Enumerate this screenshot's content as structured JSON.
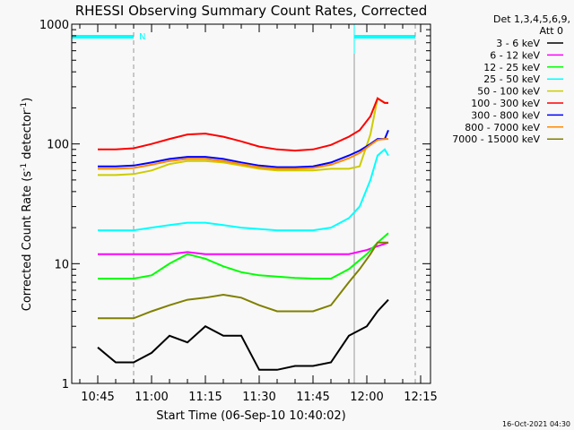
{
  "chart_data": {
    "type": "line",
    "title": "RHESSI Observing Summary Count Rates, Corrected",
    "xlabel": "Start Time (06-Sep-10 10:40:02)",
    "ylabel": "Corrected Count Rate (s",
    "ylabel_sup1": "-1",
    "ylabel_mid": " detector",
    "ylabel_sup2": "-1",
    "ylabel_end": ")",
    "y_scale": "log",
    "ylim": [
      1,
      1000
    ],
    "xlim": [
      "10:37:45",
      "12:17:45"
    ],
    "x_ticks": [
      "10:45",
      "11:00",
      "11:15",
      "11:30",
      "11:45",
      "12:00",
      "12:15"
    ],
    "y_ticks": [
      "1",
      "10",
      "100",
      "1000"
    ],
    "grid": false,
    "legend_placement": "right-outside",
    "legend_header": [
      "Det 1,3,4,5,6,9,",
      "Att 0"
    ],
    "footer_date": "16-Oct-2021 04:30",
    "annotations": {
      "night_label": "N",
      "night_color": "#00ffff",
      "night_intervals": [
        [
          "10:37:45",
          "10:55:00"
        ],
        [
          "11:56:30",
          "12:13:30"
        ]
      ],
      "solid_markers": [
        "10:37:45",
        "11:56:30"
      ],
      "dashed_markers": [
        "10:55:00",
        "12:13:30"
      ]
    },
    "series": [
      {
        "name": "3 - 6 keV",
        "color": "#000000",
        "x": [
          "10:45",
          "10:50",
          "10:55",
          "11:00",
          "11:05",
          "11:10",
          "11:15",
          "11:20",
          "11:25",
          "11:30",
          "11:35",
          "11:40",
          "11:45",
          "11:50",
          "11:55",
          "12:00",
          "12:03",
          "12:06"
        ],
        "y": [
          2,
          1.5,
          1.5,
          1.8,
          2.5,
          2.2,
          3,
          2.5,
          2.5,
          1.3,
          1.3,
          1.4,
          1.4,
          1.5,
          2.5,
          3,
          4,
          5
        ]
      },
      {
        "name": "6 - 12 keV",
        "color": "#ff00ff",
        "x": [
          "10:45",
          "10:50",
          "10:55",
          "11:00",
          "11:05",
          "11:10",
          "11:15",
          "11:20",
          "11:25",
          "11:30",
          "11:35",
          "11:40",
          "11:45",
          "11:50",
          "11:55",
          "12:00",
          "12:03",
          "12:06"
        ],
        "y": [
          12,
          12,
          12,
          12,
          12,
          12.5,
          12,
          12,
          12,
          12,
          12,
          12,
          12,
          12,
          12,
          13,
          14,
          15
        ]
      },
      {
        "name": "12 - 25 keV",
        "color": "#00ff00",
        "x": [
          "10:45",
          "10:50",
          "10:55",
          "11:00",
          "11:05",
          "11:10",
          "11:15",
          "11:20",
          "11:25",
          "11:30",
          "11:35",
          "11:40",
          "11:45",
          "11:50",
          "11:55",
          "12:00",
          "12:03",
          "12:06"
        ],
        "y": [
          7.5,
          7.5,
          7.5,
          8,
          10,
          12,
          11,
          9.5,
          8.5,
          8,
          7.8,
          7.6,
          7.5,
          7.5,
          9,
          12,
          15,
          18
        ]
      },
      {
        "name": "25 - 50 keV",
        "color": "#00ffff",
        "x": [
          "10:45",
          "10:50",
          "10:55",
          "11:00",
          "11:05",
          "11:10",
          "11:15",
          "11:20",
          "11:25",
          "11:30",
          "11:35",
          "11:40",
          "11:45",
          "11:50",
          "11:55",
          "11:58",
          "12:01",
          "12:03",
          "12:05",
          "12:06"
        ],
        "y": [
          19,
          19,
          19,
          20,
          21,
          22,
          22,
          21,
          20,
          19.5,
          19,
          19,
          19,
          20,
          24,
          30,
          50,
          80,
          90,
          80
        ]
      },
      {
        "name": "50 - 100 keV",
        "color": "#cccc00",
        "x": [
          "10:45",
          "10:50",
          "10:55",
          "11:00",
          "11:05",
          "11:10",
          "11:15",
          "11:20",
          "11:25",
          "11:30",
          "11:35",
          "11:40",
          "11:45",
          "11:50",
          "11:55",
          "11:58",
          "12:01",
          "12:03",
          "12:05",
          "12:06"
        ],
        "y": [
          55,
          55,
          56,
          60,
          68,
          72,
          72,
          70,
          66,
          62,
          60,
          60,
          60,
          62,
          62,
          65,
          120,
          240,
          220,
          220
        ]
      },
      {
        "name": "100 - 300 keV",
        "color": "#ff0000",
        "x": [
          "10:45",
          "10:50",
          "10:55",
          "11:00",
          "11:05",
          "11:10",
          "11:15",
          "11:20",
          "11:25",
          "11:30",
          "11:35",
          "11:40",
          "11:45",
          "11:50",
          "11:55",
          "11:58",
          "12:01",
          "12:03",
          "12:05",
          "12:06"
        ],
        "y": [
          90,
          90,
          92,
          100,
          110,
          120,
          122,
          115,
          105,
          95,
          90,
          88,
          90,
          98,
          115,
          130,
          170,
          240,
          220,
          220
        ]
      },
      {
        "name": "300 - 800 keV",
        "color": "#0000ff",
        "x": [
          "10:45",
          "10:50",
          "10:55",
          "11:00",
          "11:05",
          "11:10",
          "11:15",
          "11:20",
          "11:25",
          "11:30",
          "11:35",
          "11:40",
          "11:45",
          "11:50",
          "11:55",
          "11:58",
          "12:01",
          "12:03",
          "12:05",
          "12:06"
        ],
        "y": [
          65,
          65,
          66,
          70,
          75,
          78,
          78,
          75,
          70,
          66,
          64,
          64,
          65,
          70,
          80,
          88,
          100,
          110,
          110,
          130
        ]
      },
      {
        "name": "800 - 7000 keV",
        "color": "#ff8800",
        "x": [
          "10:45",
          "10:50",
          "10:55",
          "11:00",
          "11:05",
          "11:10",
          "11:15",
          "11:20",
          "11:25",
          "11:30",
          "11:35",
          "11:40",
          "11:45",
          "11:50",
          "11:55",
          "11:58",
          "12:01",
          "12:03",
          "12:05",
          "12:06"
        ],
        "y": [
          62,
          62,
          63,
          67,
          72,
          75,
          75,
          72,
          68,
          64,
          62,
          62,
          63,
          67,
          76,
          84,
          98,
          108,
          110,
          110
        ]
      },
      {
        "name": "7000 - 15000 keV",
        "color": "#808000",
        "x": [
          "10:45",
          "10:50",
          "10:55",
          "11:00",
          "11:05",
          "11:10",
          "11:15",
          "11:20",
          "11:25",
          "11:30",
          "11:35",
          "11:40",
          "11:45",
          "11:50",
          "11:55",
          "11:58",
          "12:01",
          "12:03",
          "12:06"
        ],
        "y": [
          3.5,
          3.5,
          3.5,
          4,
          4.5,
          5,
          5.2,
          5.5,
          5.2,
          4.5,
          4,
          4,
          4,
          4.5,
          7,
          9,
          12,
          15,
          15
        ]
      }
    ]
  }
}
